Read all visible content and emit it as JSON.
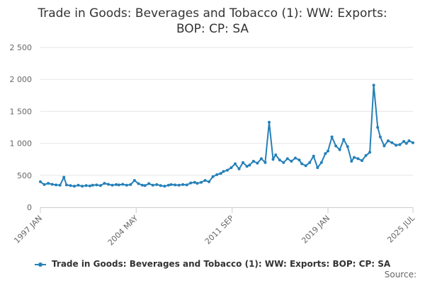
{
  "chart_data": {
    "type": "line",
    "title": "Trade in Goods: Beverages and Tobacco (1): WW: Exports: BOP: CP: SA",
    "xlabel": "",
    "ylabel": "",
    "ylim": [
      0,
      2500
    ],
    "y_ticks": [
      {
        "value": 0,
        "label": "0"
      },
      {
        "value": 500,
        "label": "500"
      },
      {
        "value": 1000,
        "label": "1 000"
      },
      {
        "value": 1500,
        "label": "1 500"
      },
      {
        "value": 2000,
        "label": "2 000"
      },
      {
        "value": 2500,
        "label": "2 500"
      }
    ],
    "x_range": [
      1997.0,
      2025.5
    ],
    "x_ticks": [
      {
        "value": 1997.0,
        "label": "1997 JAN"
      },
      {
        "value": 2004.33,
        "label": "2004 MAY"
      },
      {
        "value": 2011.67,
        "label": "2011 SEP"
      },
      {
        "value": 2019.0,
        "label": "2019 JAN"
      },
      {
        "value": 2025.5,
        "label": "2025 JUL"
      }
    ],
    "grid": true,
    "legend_position": "bottom",
    "series": [
      {
        "name": "Trade in Goods: Beverages and Tobacco (1): WW: Exports: BOP: CP: SA",
        "color": "#2580b8",
        "points": [
          [
            1997.0,
            400
          ],
          [
            1997.3,
            355
          ],
          [
            1997.6,
            375
          ],
          [
            1997.9,
            360
          ],
          [
            1998.2,
            350
          ],
          [
            1998.5,
            345
          ],
          [
            1998.8,
            470
          ],
          [
            1999.0,
            350
          ],
          [
            1999.3,
            340
          ],
          [
            1999.6,
            330
          ],
          [
            1999.9,
            345
          ],
          [
            2000.2,
            330
          ],
          [
            2000.5,
            340
          ],
          [
            2000.8,
            335
          ],
          [
            2001.0,
            345
          ],
          [
            2001.3,
            350
          ],
          [
            2001.6,
            340
          ],
          [
            2001.9,
            375
          ],
          [
            2002.2,
            360
          ],
          [
            2002.5,
            345
          ],
          [
            2002.8,
            355
          ],
          [
            2003.0,
            350
          ],
          [
            2003.3,
            360
          ],
          [
            2003.6,
            345
          ],
          [
            2003.9,
            355
          ],
          [
            2004.2,
            420
          ],
          [
            2004.5,
            370
          ],
          [
            2004.8,
            345
          ],
          [
            2005.0,
            340
          ],
          [
            2005.3,
            370
          ],
          [
            2005.6,
            345
          ],
          [
            2005.9,
            355
          ],
          [
            2006.2,
            340
          ],
          [
            2006.5,
            330
          ],
          [
            2006.8,
            345
          ],
          [
            2007.0,
            355
          ],
          [
            2007.3,
            350
          ],
          [
            2007.6,
            345
          ],
          [
            2007.9,
            355
          ],
          [
            2008.2,
            350
          ],
          [
            2008.5,
            380
          ],
          [
            2008.8,
            390
          ],
          [
            2009.0,
            375
          ],
          [
            2009.3,
            390
          ],
          [
            2009.6,
            420
          ],
          [
            2009.9,
            400
          ],
          [
            2010.2,
            480
          ],
          [
            2010.5,
            510
          ],
          [
            2010.8,
            530
          ],
          [
            2011.0,
            560
          ],
          [
            2011.3,
            580
          ],
          [
            2011.6,
            620
          ],
          [
            2011.9,
            680
          ],
          [
            2012.2,
            600
          ],
          [
            2012.5,
            700
          ],
          [
            2012.8,
            640
          ],
          [
            2013.0,
            660
          ],
          [
            2013.3,
            720
          ],
          [
            2013.6,
            690
          ],
          [
            2013.9,
            760
          ],
          [
            2014.2,
            700
          ],
          [
            2014.5,
            1330
          ],
          [
            2014.8,
            750
          ],
          [
            2015.0,
            820
          ],
          [
            2015.3,
            740
          ],
          [
            2015.6,
            700
          ],
          [
            2015.9,
            760
          ],
          [
            2016.2,
            720
          ],
          [
            2016.5,
            770
          ],
          [
            2016.8,
            740
          ],
          [
            2017.0,
            680
          ],
          [
            2017.3,
            650
          ],
          [
            2017.6,
            700
          ],
          [
            2017.9,
            800
          ],
          [
            2018.2,
            620
          ],
          [
            2018.5,
            700
          ],
          [
            2018.8,
            840
          ],
          [
            2019.0,
            880
          ],
          [
            2019.3,
            1100
          ],
          [
            2019.6,
            960
          ],
          [
            2019.9,
            900
          ],
          [
            2020.2,
            1060
          ],
          [
            2020.5,
            950
          ],
          [
            2020.8,
            720
          ],
          [
            2021.0,
            780
          ],
          [
            2021.3,
            760
          ],
          [
            2021.6,
            730
          ],
          [
            2021.9,
            810
          ],
          [
            2022.2,
            860
          ],
          [
            2022.5,
            1910
          ],
          [
            2022.8,
            1250
          ],
          [
            2023.0,
            1100
          ],
          [
            2023.3,
            960
          ],
          [
            2023.6,
            1040
          ],
          [
            2023.9,
            1010
          ],
          [
            2024.2,
            970
          ],
          [
            2024.5,
            980
          ],
          [
            2024.8,
            1030
          ],
          [
            2025.0,
            1000
          ],
          [
            2025.2,
            1040
          ],
          [
            2025.5,
            1010
          ]
        ]
      }
    ],
    "source_label": "Source:"
  }
}
